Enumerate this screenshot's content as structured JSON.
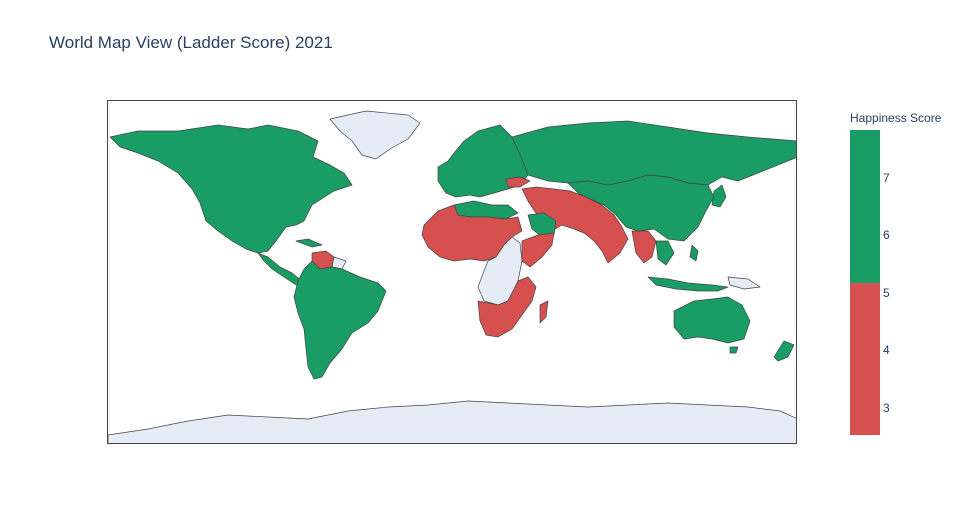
{
  "title": "World Map View (Ladder Score) 2021",
  "colorbar": {
    "title": "Happiness Score",
    "ticks": [
      "7",
      "6",
      "5",
      "4",
      "3"
    ],
    "range": [
      2.5,
      7.8
    ],
    "threshold": 5,
    "high_color": "#1a9c65",
    "low_color": "#d65050"
  },
  "map": {
    "projection": "equirectangular",
    "land_color": "#e5ecf6",
    "border_color": "#444444",
    "high_color": "#1a9c65",
    "low_color": "#d65050"
  }
}
